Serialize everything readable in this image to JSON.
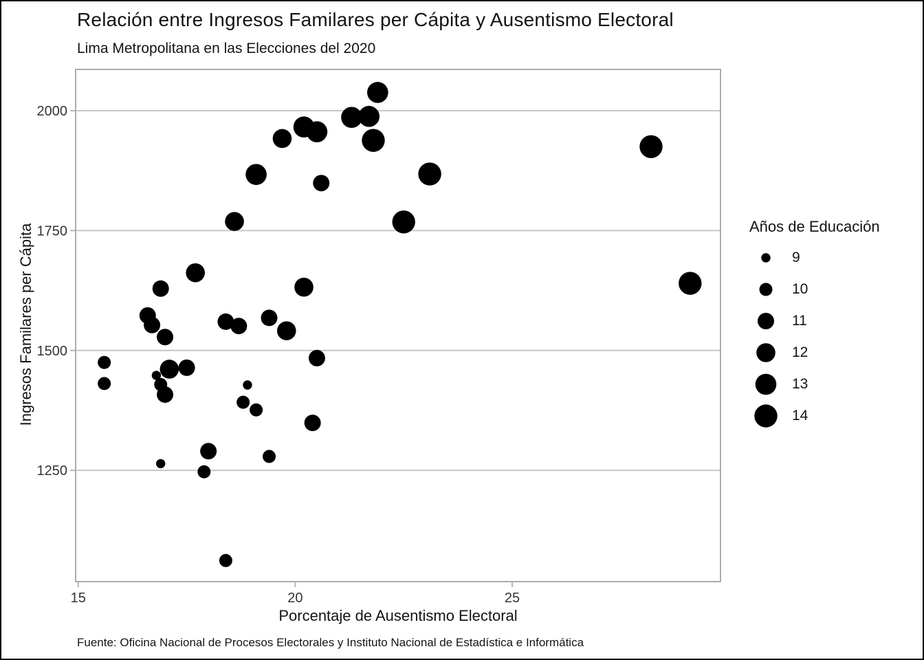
{
  "chart_data": {
    "type": "scatter",
    "title": "Relación entre Ingresos Familares per Cápita y Ausentismo Electoral",
    "subtitle": "Lima Metropolitana en las Elecciones del 2020",
    "caption": "Fuente: Oficina Nacional de Procesos Electorales y Instituto Nacional de Estadística e Informática",
    "xlabel": "Porcentaje de Ausentismo Electoral",
    "ylabel": "Ingresos Familares per Cápita",
    "xlim": [
      14.94,
      29.8
    ],
    "ylim": [
      1018,
      2086
    ],
    "x_ticks": [
      15,
      20,
      25
    ],
    "y_ticks": [
      2000,
      1750,
      1500,
      1250
    ],
    "grid": "horizontal-only",
    "legend": {
      "title": "Años de Educación",
      "position": "right",
      "sizes": [
        9,
        10,
        11,
        12,
        13,
        14
      ],
      "size_radius_px": {
        "9": 6.7,
        "10": 9.5,
        "11": 12,
        "12": 13.8,
        "13": 15.3,
        "14": 16.7
      }
    },
    "size_variable": "Años de Educación",
    "points": [
      {
        "x": 21.9,
        "y": 2038,
        "educacion": 13
      },
      {
        "x": 21.3,
        "y": 1986,
        "educacion": 13
      },
      {
        "x": 21.7,
        "y": 1988,
        "educacion": 13
      },
      {
        "x": 21.8,
        "y": 1938,
        "educacion": 14
      },
      {
        "x": 19.7,
        "y": 1942,
        "educacion": 12
      },
      {
        "x": 20.2,
        "y": 1966,
        "educacion": 13
      },
      {
        "x": 20.5,
        "y": 1956,
        "educacion": 13
      },
      {
        "x": 19.1,
        "y": 1867,
        "educacion": 13
      },
      {
        "x": 20.6,
        "y": 1849,
        "educacion": 11
      },
      {
        "x": 18.6,
        "y": 1769,
        "educacion": 12
      },
      {
        "x": 23.1,
        "y": 1868,
        "educacion": 14
      },
      {
        "x": 28.2,
        "y": 1925,
        "educacion": 14
      },
      {
        "x": 22.5,
        "y": 1768,
        "educacion": 14
      },
      {
        "x": 29.1,
        "y": 1640,
        "educacion": 14
      },
      {
        "x": 17.7,
        "y": 1662,
        "educacion": 12
      },
      {
        "x": 16.9,
        "y": 1629,
        "educacion": 11
      },
      {
        "x": 20.2,
        "y": 1632,
        "educacion": 12
      },
      {
        "x": 16.6,
        "y": 1573,
        "educacion": 11
      },
      {
        "x": 16.7,
        "y": 1553,
        "educacion": 11
      },
      {
        "x": 17.0,
        "y": 1528,
        "educacion": 11
      },
      {
        "x": 18.4,
        "y": 1560,
        "educacion": 11
      },
      {
        "x": 18.7,
        "y": 1551,
        "educacion": 11
      },
      {
        "x": 19.4,
        "y": 1568,
        "educacion": 11
      },
      {
        "x": 19.8,
        "y": 1541,
        "educacion": 12
      },
      {
        "x": 20.5,
        "y": 1484,
        "educacion": 11
      },
      {
        "x": 15.6,
        "y": 1475,
        "educacion": 10
      },
      {
        "x": 15.6,
        "y": 1431,
        "educacion": 10
      },
      {
        "x": 17.1,
        "y": 1461,
        "educacion": 12
      },
      {
        "x": 17.5,
        "y": 1464,
        "educacion": 11
      },
      {
        "x": 16.8,
        "y": 1448,
        "educacion": 9
      },
      {
        "x": 16.9,
        "y": 1429,
        "educacion": 10
      },
      {
        "x": 17.0,
        "y": 1408,
        "educacion": 11
      },
      {
        "x": 18.9,
        "y": 1428,
        "educacion": 9
      },
      {
        "x": 18.8,
        "y": 1392,
        "educacion": 10
      },
      {
        "x": 19.1,
        "y": 1376,
        "educacion": 10
      },
      {
        "x": 20.4,
        "y": 1349,
        "educacion": 11
      },
      {
        "x": 16.9,
        "y": 1264,
        "educacion": 9
      },
      {
        "x": 18.0,
        "y": 1290,
        "educacion": 11
      },
      {
        "x": 17.9,
        "y": 1247,
        "educacion": 10
      },
      {
        "x": 19.4,
        "y": 1279,
        "educacion": 10
      },
      {
        "x": 18.4,
        "y": 1062,
        "educacion": 10
      }
    ]
  },
  "colors": {
    "point": "#000000",
    "grid": "#c6c6c6",
    "panel_border": "#ababab",
    "tick": "#b5b5b5",
    "axis_text": "#333333",
    "text": "#141414",
    "background": "#ffffff",
    "outer_border": "#000000"
  }
}
